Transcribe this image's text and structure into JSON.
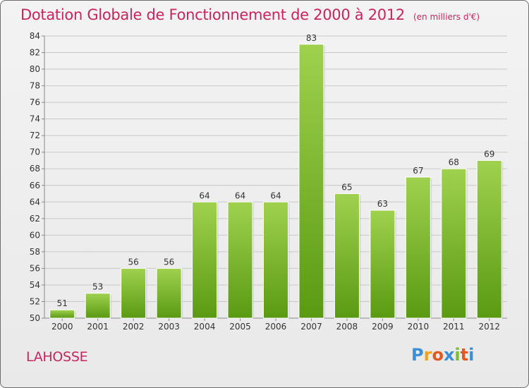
{
  "header": {
    "title": "Dotation Globale de Fonctionnement de 2000 à 2012",
    "subtitle": "(en milliers d'€)"
  },
  "commune": "LAHOSSE",
  "logo": {
    "text": "Proxiti",
    "colors": [
      "#3b8fd4",
      "#f0a41c",
      "#e4571f",
      "#3b8fd4",
      "#7bbf2a",
      "#e4571f",
      "#3b8fd4"
    ]
  },
  "colors": {
    "title": "#c8245e",
    "bar_light": "#9fd14f",
    "bar_dark": "#5a9a12",
    "grid": "#c8c8c8",
    "axis_text": "#333333"
  },
  "chart_data": {
    "type": "bar",
    "categories": [
      "2000",
      "2001",
      "2002",
      "2003",
      "2004",
      "2005",
      "2006",
      "2007",
      "2008",
      "2009",
      "2010",
      "2011",
      "2012"
    ],
    "values": [
      51,
      53,
      56,
      56,
      64,
      64,
      64,
      83,
      65,
      63,
      67,
      68,
      69
    ],
    "ylim": [
      50,
      84
    ],
    "yticks": [
      50,
      52,
      54,
      56,
      58,
      60,
      62,
      64,
      66,
      68,
      70,
      72,
      74,
      76,
      78,
      80,
      82,
      84
    ],
    "grid": true,
    "data_labels": true
  }
}
